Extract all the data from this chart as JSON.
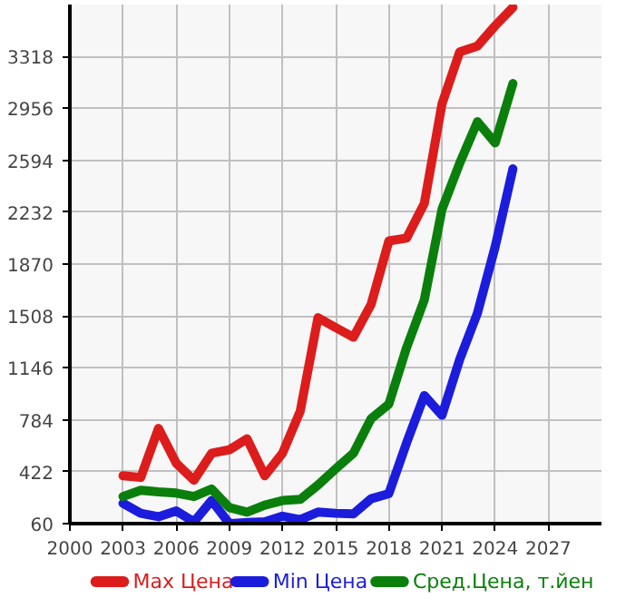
{
  "chart_data": {
    "type": "line",
    "x": [
      2003,
      2004,
      2005,
      2006,
      2007,
      2008,
      2009,
      2010,
      2011,
      2012,
      2013,
      2014,
      2015,
      2016,
      2017,
      2018,
      2019,
      2020,
      2021,
      2022,
      2023,
      2024,
      2025
    ],
    "series": [
      {
        "name": "Max Цена",
        "color": "#dd1c1c",
        "values": [
          394,
          382,
          724,
          482,
          362,
          551,
          575,
          651,
          394,
          551,
          844,
          1496,
          1427,
          1360,
          1589,
          2031,
          2051,
          2292,
          2988,
          3350,
          3390,
          3532,
          3660
        ]
      },
      {
        "name": "Min Цена",
        "color": "#1c1cdd",
        "values": [
          201,
          132,
          108,
          148,
          72,
          221,
          60,
          68,
          72,
          112,
          88,
          140,
          132,
          128,
          233,
          269,
          623,
          953,
          816,
          1206,
          1528,
          1991,
          2534
        ]
      },
      {
        "name": "Сред.Цена, т.йен",
        "color": "#0b7f0b",
        "values": [
          249,
          293,
          281,
          273,
          249,
          301,
          172,
          140,
          189,
          221,
          229,
          329,
          442,
          551,
          792,
          893,
          1287,
          1620,
          2252,
          2574,
          2863,
          2715,
          3129
        ]
      }
    ],
    "xlim": [
      2000,
      2030
    ],
    "ylim": [
      60,
      3680
    ],
    "xticks": [
      2000,
      2003,
      2006,
      2009,
      2012,
      2015,
      2018,
      2021,
      2024,
      2027
    ],
    "yticks": [
      60,
      422,
      784,
      1146,
      1508,
      1870,
      2232,
      2594,
      2956,
      3318
    ],
    "grid": true,
    "legend": "bottom",
    "line_style": "solid",
    "marker": "none"
  }
}
